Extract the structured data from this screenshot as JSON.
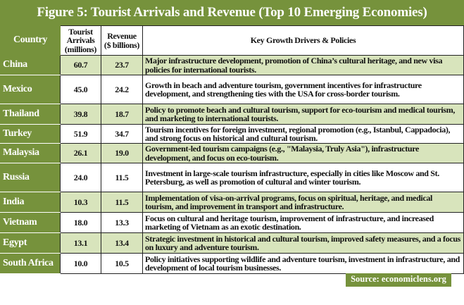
{
  "title": "Figure 5: Tourist Arrivals and Revenue (Top 10 Emerging Economies)",
  "headers": [
    "Country",
    "Tourist Arrivals (millions)",
    "Revenue ($ billions)",
    "Key Growth Drivers & Policies"
  ],
  "rows": [
    {
      "country": "China",
      "arrivals": "60.7",
      "revenue": "23.7",
      "drivers": "Major infrastructure development, promotion of China’s cultural heritage, and new visa policies for international tourists."
    },
    {
      "country": "Mexico",
      "arrivals": "45.0",
      "revenue": "24.2",
      "drivers": "Growth in beach and adventure tourism, government incentives for infrastructure development, and strengthening ties with the USA for cross-border tourism."
    },
    {
      "country": "Thailand",
      "arrivals": "39.8",
      "revenue": "18.7",
      "drivers": "Policy to promote beach and cultural tourism, support for eco-tourism and medical tourism, and marketing to international tourists."
    },
    {
      "country": "Turkey",
      "arrivals": "51.9",
      "revenue": "34.7",
      "drivers": "Tourism incentives for foreign investment, regional promotion (e.g., Istanbul, Cappadocia), and strong focus on historical and cultural tourism."
    },
    {
      "country": "Malaysia",
      "arrivals": "26.1",
      "revenue": "19.0",
      "drivers": "Government-led tourism campaigns (e.g., \"Malaysia, Truly Asia\"), infrastructure development, and focus on eco-tourism."
    },
    {
      "country": "Russia",
      "arrivals": "24.0",
      "revenue": "11.5",
      "drivers": "Investment in large-scale tourism infrastructure, especially in cities like Moscow and St. Petersburg, as well as promotion of cultural and winter tourism."
    },
    {
      "country": "India",
      "arrivals": "10.3",
      "revenue": "11.5",
      "drivers": "Implementation of visa-on-arrival programs, focus on spiritual, heritage, and medical tourism, and improvement in transport and infrastructure."
    },
    {
      "country": "Vietnam",
      "arrivals": "18.0",
      "revenue": "13.3",
      "drivers": "Focus on cultural and heritage tourism, improvement of infrastructure, and increased marketing of Vietnam as an exotic destination."
    },
    {
      "country": "Egypt",
      "arrivals": "13.1",
      "revenue": "13.4",
      "drivers": "Strategic investment in historical and cultural tourism, improved safety measures, and a focus on luxury and adventure tourism."
    },
    {
      "country": "South Africa",
      "arrivals": "10.0",
      "revenue": "10.5",
      "drivers": "Policy initiatives supporting wildlife and adventure tourism, investment in infrastructure, and development of local tourism businesses."
    }
  ],
  "source": "Source: economiclens.org",
  "colors": {
    "accent": "#76923c",
    "alt_row": "#d8e4bc"
  }
}
